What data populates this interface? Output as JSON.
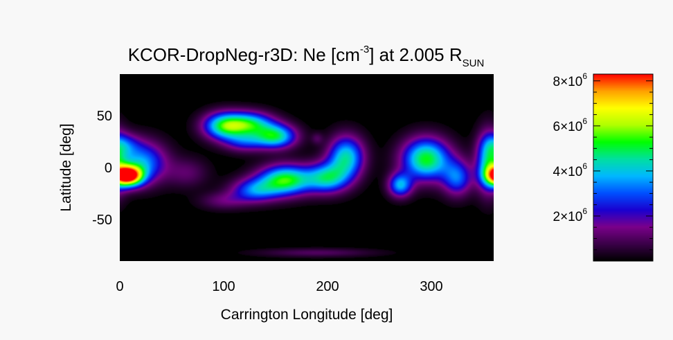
{
  "chart_data": {
    "type": "heatmap",
    "title": {
      "main": "KCOR-DropNeg-r3D: Ne [cm",
      "sup": "-3",
      "mid": "] at 2.005 R",
      "sub": "SUN"
    },
    "xlabel": "Carrington Longitude [deg]",
    "ylabel": "Latitude [deg]",
    "xlim": [
      0,
      360
    ],
    "ylim": [
      -90,
      90
    ],
    "x_ticks": [
      {
        "value": 0,
        "label": "0"
      },
      {
        "value": 100,
        "label": "100"
      },
      {
        "value": 200,
        "label": "200"
      },
      {
        "value": 300,
        "label": "300"
      }
    ],
    "y_ticks": [
      {
        "value": 50,
        "label": "50"
      },
      {
        "value": 0,
        "label": "0"
      },
      {
        "value": -50,
        "label": "-50"
      }
    ],
    "colorbar": {
      "range": [
        0,
        8300000
      ],
      "colormap": [
        "#000000",
        "#3a0048",
        "#7a008a",
        "#1a00d0",
        "#0050ff",
        "#00b8ff",
        "#00e0a0",
        "#00ff00",
        "#b0ff00",
        "#ffff00",
        "#ffa000",
        "#ff0000"
      ],
      "ticks": [
        {
          "value": 2000000,
          "mantissa": "2×10",
          "exp": "6"
        },
        {
          "value": 4000000,
          "mantissa": "4×10",
          "exp": "6"
        },
        {
          "value": 6000000,
          "mantissa": "6×10",
          "exp": "6"
        },
        {
          "value": 8000000,
          "mantissa": "8×10",
          "exp": "6"
        }
      ]
    },
    "blobs": [
      {
        "lon": 8,
        "lat": -8,
        "slon": 10,
        "slat": 7,
        "amp": 8300000
      },
      {
        "lon": 22,
        "lat": 5,
        "slon": 16,
        "slat": 14,
        "amp": 3500000
      },
      {
        "lon": 5,
        "lat": 22,
        "slon": 10,
        "slat": 8,
        "amp": 1800000
      },
      {
        "lon": 65,
        "lat": -5,
        "slon": 14,
        "slat": 10,
        "amp": 1100000
      },
      {
        "lon": 100,
        "lat": 40,
        "slon": 14,
        "slat": 9,
        "amp": 4500000
      },
      {
        "lon": 125,
        "lat": 42,
        "slon": 16,
        "slat": 8,
        "amp": 4300000
      },
      {
        "lon": 150,
        "lat": 30,
        "slon": 14,
        "slat": 8,
        "amp": 4600000
      },
      {
        "lon": 120,
        "lat": 25,
        "slon": 14,
        "slat": 7,
        "amp": 2200000
      },
      {
        "lon": 160,
        "lat": -12,
        "slon": 18,
        "slat": 10,
        "amp": 5300000
      },
      {
        "lon": 130,
        "lat": -22,
        "slon": 16,
        "slat": 8,
        "amp": 3000000
      },
      {
        "lon": 200,
        "lat": -10,
        "slon": 14,
        "slat": 10,
        "amp": 4000000
      },
      {
        "lon": 218,
        "lat": 10,
        "slon": 12,
        "slat": 14,
        "amp": 4300000
      },
      {
        "lon": 100,
        "lat": -32,
        "slon": 16,
        "slat": 6,
        "amp": 1200000
      },
      {
        "lon": 270,
        "lat": -17,
        "slon": 8,
        "slat": 8,
        "amp": 3600000
      },
      {
        "lon": 295,
        "lat": 8,
        "slon": 16,
        "slat": 14,
        "amp": 5200000
      },
      {
        "lon": 325,
        "lat": -10,
        "slon": 10,
        "slat": 12,
        "amp": 3000000
      },
      {
        "lon": 355,
        "lat": 5,
        "slon": 8,
        "slat": 20,
        "amp": 3800000
      },
      {
        "lon": 190,
        "lat": -82,
        "slon": 40,
        "slat": 3,
        "amp": 1000000
      },
      {
        "lon": 190,
        "lat": 28,
        "slon": 4,
        "slat": 4,
        "amp": 800000
      }
    ]
  }
}
